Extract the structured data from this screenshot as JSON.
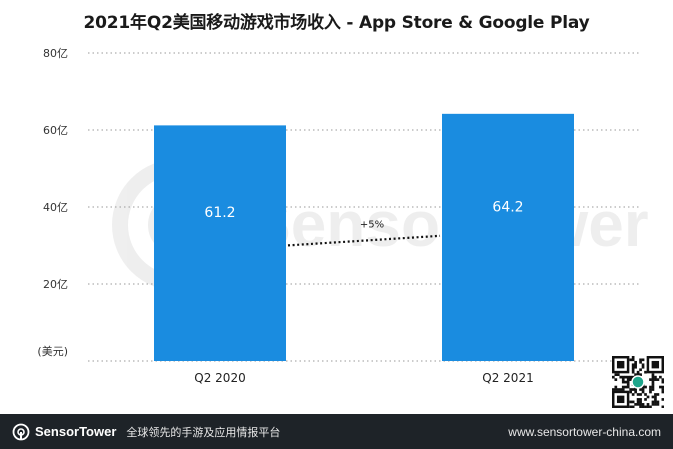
{
  "chart_data": {
    "type": "bar",
    "title": "2021年Q2美国移动游戏市场收入 - App Store & Google Play",
    "categories": [
      "Q2 2020",
      "Q2 2021"
    ],
    "series": [
      {
        "values": [
          61.2,
          64.2
        ]
      }
    ],
    "data_labels": [
      "61.2",
      "64.2"
    ],
    "y_ticks": [
      "20亿",
      "40亿",
      "60亿",
      "80亿"
    ],
    "y_tick_values": [
      20,
      40,
      60,
      80
    ],
    "ylabel": "(美元)",
    "ylim": [
      0,
      80
    ],
    "grid": true,
    "bar_color": "#1a8ce0",
    "annotation": {
      "text": "+5%",
      "style": "dotted connector between bars"
    }
  },
  "watermark": "SensorTower",
  "footer": {
    "brand": "SensorTower",
    "tagline": "全球领先的手游及应用情报平台",
    "website": "www.sensortower-china.com",
    "background": "#1e2328"
  }
}
